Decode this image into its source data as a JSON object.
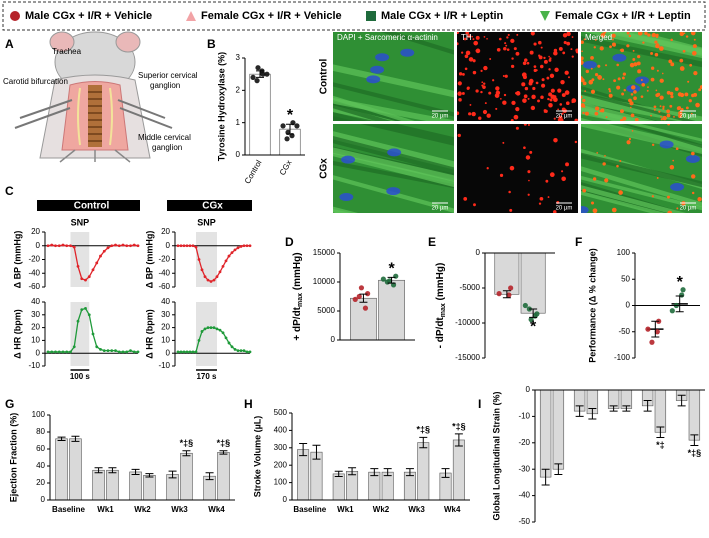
{
  "legend": [
    {
      "name": "Male CGx + I/R + Vehicle",
      "color": "#b5232a",
      "marker": "circle"
    },
    {
      "name": "Female CGx + I/R + Vehicle",
      "color": "#f2a3a6",
      "marker": "triangle-up"
    },
    {
      "name": "Male CGx + I/R + Leptin",
      "color": "#1f6b3c",
      "marker": "square"
    },
    {
      "name": "Female CGx + I/R + Leptin",
      "color": "#49b24a",
      "marker": "triangle-down"
    }
  ],
  "panel_labels": [
    "A",
    "B",
    "C",
    "D",
    "E",
    "F",
    "G",
    "H",
    "I"
  ],
  "illustration": {
    "labels": [
      [
        "Trachea"
      ],
      [
        "Carotid bifurcation"
      ],
      [
        "Superior cervical",
        "ganglion"
      ],
      [
        "Middle cervical",
        "ganglion"
      ]
    ]
  },
  "micrographs": {
    "columns": [
      "DAPI + Sarcomeric α-actinin",
      "TH",
      "Merged"
    ],
    "rows": [
      "Control",
      "CGx"
    ],
    "scale_bar": "20 µm"
  },
  "chart_data": [
    {
      "type": "bar",
      "ylabel": "Tyrosine Hydroxylase (%)",
      "categories": [
        "Control",
        "CGx"
      ],
      "ylim": [
        0,
        3
      ],
      "yticks": [
        0,
        1,
        2,
        3
      ],
      "bar_color": "#ffffff",
      "series": [
        {
          "color": "#111111",
          "values": [
            2.5,
            0.8
          ],
          "errors": [
            0.1,
            0.15
          ],
          "points": [
            [
              2.4,
              2.6,
              2.5,
              2.3,
              2.7,
              2.5
            ],
            [
              0.9,
              0.6,
              1.0,
              0.5,
              0.7,
              0.9
            ]
          ],
          "annotations": [
            null,
            "*"
          ]
        }
      ]
    },
    {
      "type": "line",
      "title": "Control",
      "subtitle": "SNP",
      "ylabel": "Δ BP (mmHg)",
      "x": [
        0,
        1,
        2,
        3,
        4,
        5,
        6,
        7,
        8,
        9,
        10,
        11,
        12,
        13,
        14,
        15,
        16,
        17,
        18,
        19,
        20,
        21,
        22,
        23,
        24
      ],
      "xlim": [
        0,
        24
      ],
      "ylim": [
        -60,
        20
      ],
      "yticks": [
        20,
        0,
        -20,
        -40,
        -60
      ],
      "highlight": [
        6,
        11
      ],
      "refline": 0,
      "series": [
        {
          "color": "#e0242a",
          "values": [
            0,
            1,
            0,
            0,
            1,
            0,
            0,
            -2,
            -30,
            -48,
            -50,
            -45,
            -35,
            -25,
            -15,
            -8,
            -3,
            0,
            1,
            0,
            1,
            0,
            0,
            1,
            0
          ]
        }
      ]
    },
    {
      "type": "line",
      "title": "CGx",
      "subtitle": "SNP",
      "ylabel": "Δ BP (mmHg)",
      "x": [
        0,
        1,
        2,
        3,
        4,
        5,
        6,
        7,
        8,
        9,
        10,
        11,
        12,
        13,
        14,
        15,
        16,
        17,
        18,
        19,
        20,
        21,
        22,
        23,
        24
      ],
      "xlim": [
        0,
        24
      ],
      "ylim": [
        -60,
        20
      ],
      "yticks": [
        20,
        0,
        -20,
        -40,
        -60
      ],
      "highlight": [
        6,
        13
      ],
      "refline": 0,
      "series": [
        {
          "color": "#e0242a",
          "values": [
            0,
            0,
            0,
            0,
            0,
            0,
            -2,
            -20,
            -35,
            -45,
            -50,
            -52,
            -50,
            -45,
            -38,
            -30,
            -22,
            -15,
            -10,
            -6,
            -3,
            -1,
            0,
            0,
            0
          ]
        }
      ]
    },
    {
      "type": "line",
      "ylabel": "Δ HR (bpm)",
      "x": [
        0,
        1,
        2,
        3,
        4,
        5,
        6,
        7,
        8,
        9,
        10,
        11,
        12,
        13,
        14,
        15,
        16,
        17,
        18,
        19,
        20,
        21,
        22,
        23,
        24
      ],
      "xlim": [
        0,
        24
      ],
      "ylim": [
        -10,
        40
      ],
      "yticks": [
        40,
        30,
        20,
        10,
        0,
        -10
      ],
      "highlight": [
        6,
        11
      ],
      "refline": 0,
      "scalebar": "100 s",
      "series": [
        {
          "color": "#1f9a3a",
          "values": [
            1,
            1,
            1,
            1,
            1,
            1,
            1,
            5,
            25,
            34,
            35,
            30,
            15,
            5,
            3,
            2,
            2,
            2,
            2,
            1,
            1,
            1,
            2,
            1,
            1
          ]
        }
      ]
    },
    {
      "type": "line",
      "ylabel": "Δ HR (bpm)",
      "x": [
        0,
        1,
        2,
        3,
        4,
        5,
        6,
        7,
        8,
        9,
        10,
        11,
        12,
        13,
        14,
        15,
        16,
        17,
        18,
        19,
        20,
        21,
        22,
        23,
        24
      ],
      "xlim": [
        0,
        24
      ],
      "ylim": [
        -10,
        40
      ],
      "yticks": [
        40,
        30,
        20,
        10,
        0,
        -10
      ],
      "highlight": [
        6,
        13
      ],
      "refline": 0,
      "scalebar": "170 s",
      "series": [
        {
          "color": "#1f9a3a",
          "values": [
            1,
            1,
            1,
            1,
            1,
            1,
            1,
            10,
            17,
            19,
            20,
            20,
            20,
            19,
            18,
            16,
            12,
            8,
            5,
            3,
            2,
            2,
            2,
            1,
            1
          ]
        }
      ]
    },
    {
      "type": "bar",
      "ylabel": [
        "+ dP/dt",
        "max",
        " (mmHg)"
      ],
      "categories": [
        null
      ],
      "ylim": [
        0,
        15000
      ],
      "yticks": [
        0,
        5000,
        10000,
        15000
      ],
      "bar_color": "#d9d9d9",
      "series": [
        {
          "color": "#b5232a",
          "values": [
            7200
          ],
          "errors": [
            700
          ],
          "points": [
            [
              7000,
              5500,
              8000,
              7500,
              9000
            ]
          ],
          "annotations": [
            null
          ]
        },
        {
          "color": "#1f6b3c",
          "values": [
            10300
          ],
          "errors": [
            500
          ],
          "points": [
            [
              10500,
              9500,
              11000,
              10000,
              10200
            ]
          ],
          "annotations": [
            "*"
          ]
        }
      ]
    },
    {
      "type": "bar",
      "ylabel": [
        "- dP/dt",
        "max",
        " (mmHg)"
      ],
      "categories": [
        null
      ],
      "ylim": [
        -15000,
        0
      ],
      "yticks": [
        0,
        -5000,
        -10000,
        -15000
      ],
      "bar_color": "#d9d9d9",
      "series": [
        {
          "color": "#b5232a",
          "values": [
            -5900
          ],
          "errors": [
            500
          ],
          "points": [
            [
              -5800,
              -6000,
              -5000
            ]
          ],
          "annotations": [
            null
          ]
        },
        {
          "color": "#1f6b3c",
          "values": [
            -8600
          ],
          "errors": [
            600
          ],
          "points": [
            [
              -7500,
              -9000,
              -8700,
              -8000,
              -9500
            ]
          ],
          "annotations": [
            "*"
          ]
        }
      ]
    },
    {
      "type": "dot",
      "ylabel": "Performance (Δ % change)",
      "categories": [
        null
      ],
      "ylim": [
        -100,
        100
      ],
      "yticks": [
        -100,
        -50,
        0,
        50,
        100
      ],
      "refline": 0,
      "series": [
        {
          "color": "#b5232a",
          "values": [
            -45
          ],
          "errors": [
            15
          ],
          "points": [
            [
              -45,
              -50,
              -30,
              -70
            ]
          ],
          "annotations": [
            null
          ]
        },
        {
          "color": "#1f6b3c",
          "values": [
            3
          ],
          "errors": [
            15
          ],
          "points": [
            [
              -10,
              20,
              30,
              0
            ]
          ],
          "annotations": [
            "*"
          ]
        }
      ]
    },
    {
      "type": "bar",
      "ylabel": "Ejection Fraction (%)",
      "categories": [
        "Baseline",
        "Wk1",
        "Wk2",
        "Wk3",
        "Wk4"
      ],
      "ylim": [
        0,
        100
      ],
      "yticks": [
        0,
        20,
        40,
        60,
        80,
        100
      ],
      "bar_color": "#d9d9d9",
      "series": [
        {
          "color": "#b5232a",
          "values": [
            72,
            35,
            33,
            30,
            28
          ],
          "errors": [
            2,
            3,
            3,
            4,
            4
          ],
          "annotations": [
            null,
            null,
            null,
            null,
            null
          ]
        },
        {
          "color": "#1f6b3c",
          "values": [
            72,
            35,
            29,
            55,
            56
          ],
          "errors": [
            3,
            3,
            2,
            3,
            2
          ],
          "annotations": [
            null,
            null,
            null,
            "*‡§",
            "*‡§"
          ]
        }
      ]
    },
    {
      "type": "bar",
      "ylabel": "Stroke Volume (µL)",
      "categories": [
        "Baseline",
        "Wk1",
        "Wk2",
        "Wk3",
        "Wk4"
      ],
      "ylim": [
        0,
        500
      ],
      "yticks": [
        0,
        100,
        200,
        300,
        400,
        500
      ],
      "bar_color": "#d9d9d9",
      "series": [
        {
          "color": "#b5232a",
          "values": [
            290,
            150,
            160,
            160,
            155
          ],
          "errors": [
            35,
            15,
            20,
            20,
            25
          ],
          "annotations": [
            null,
            null,
            null,
            null,
            null
          ]
        },
        {
          "color": "#1f6b3c",
          "values": [
            275,
            165,
            160,
            330,
            345
          ],
          "errors": [
            40,
            20,
            20,
            30,
            35
          ],
          "annotations": [
            null,
            null,
            null,
            "*‡§",
            "*‡§"
          ]
        }
      ]
    },
    {
      "type": "bar",
      "ylabel": "Global Longitudinal Strain (%)",
      "categories": [
        null,
        null,
        null,
        null,
        null
      ],
      "ylim": [
        -50,
        0
      ],
      "yticks": [
        0,
        -10,
        -20,
        -30,
        -40,
        -50
      ],
      "bar_color": "#d9d9d9",
      "series": [
        {
          "color": "#b5232a",
          "values": [
            -33,
            -8,
            -7,
            -6,
            -4
          ],
          "errors": [
            3,
            2,
            1,
            2,
            2
          ],
          "annotations": [
            null,
            null,
            null,
            null,
            null
          ]
        },
        {
          "color": "#1f6b3c",
          "values": [
            -30,
            -9,
            -7,
            -16,
            -19
          ],
          "errors": [
            2,
            2,
            1,
            2,
            2
          ],
          "annotations": [
            null,
            null,
            null,
            "*‡",
            "*‡§"
          ]
        }
      ]
    }
  ]
}
